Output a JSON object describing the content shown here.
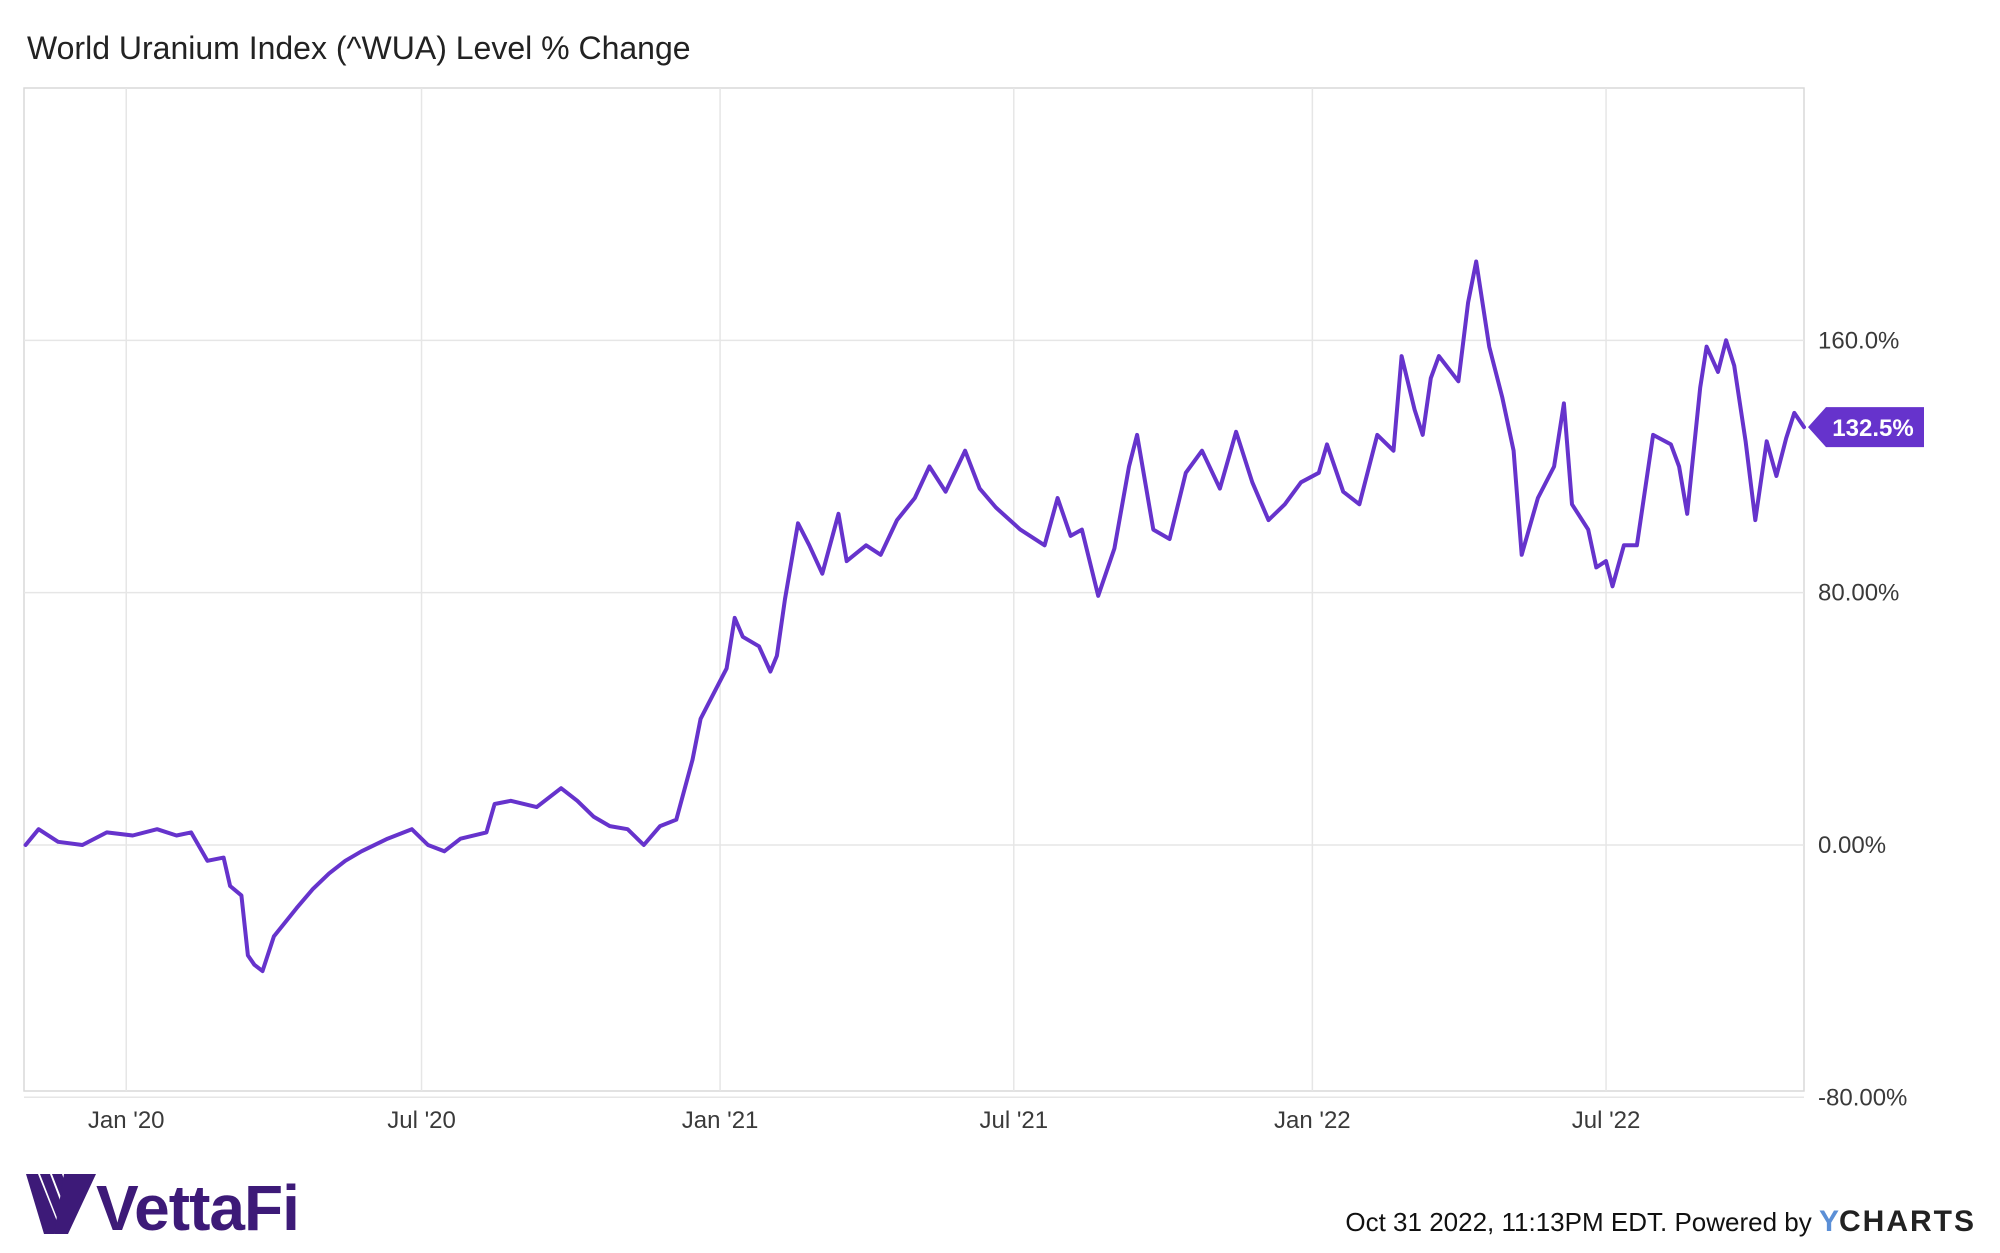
{
  "title": "World Uranium Index (^WUA) Level % Change",
  "footer": {
    "brand": "VettaFi",
    "timestamp": "Oct 31 2022, 11:13PM EDT.",
    "powered_by": "Powered by",
    "ycharts_y": "Y",
    "ycharts_rest": "CHARTS"
  },
  "colors": {
    "line": "#6633cc",
    "grid": "#e6e6e6",
    "brand": "#3d1a78",
    "ycharts_y": "#5b8fd6"
  },
  "chart_data": {
    "type": "line",
    "title": "World Uranium Index (^WUA) Level % Change",
    "xlabel": "",
    "ylabel": "",
    "y_ticks": [
      "160.0%",
      "80.00%",
      "0.00%",
      "-80.00%"
    ],
    "y_tick_values": [
      160,
      80,
      0,
      -80
    ],
    "x_ticks": [
      "Jan '20",
      "Jul '20",
      "Jan '21",
      "Jul '21",
      "Jan '22",
      "Jul '22"
    ],
    "x_tick_dates": [
      "2020-01-01",
      "2020-07-01",
      "2021-01-01",
      "2021-07-01",
      "2022-01-01",
      "2022-07-01"
    ],
    "xlim": [
      "2019-10-30",
      "2022-10-31"
    ],
    "ylim": [
      -78,
      240
    ],
    "grid": true,
    "last_value_label": "132.5%",
    "series": [
      {
        "values": [
          [
            "2019-10-31",
            0.0
          ],
          [
            "2019-11-08",
            5.0
          ],
          [
            "2019-11-20",
            1.0
          ],
          [
            "2019-12-05",
            0.0
          ],
          [
            "2019-12-20",
            4.0
          ],
          [
            "2020-01-05",
            3.0
          ],
          [
            "2020-01-20",
            5.0
          ],
          [
            "2020-02-01",
            3.0
          ],
          [
            "2020-02-10",
            4.0
          ],
          [
            "2020-02-20",
            -5.0
          ],
          [
            "2020-03-01",
            -4.0
          ],
          [
            "2020-03-05",
            -13.0
          ],
          [
            "2020-03-12",
            -16.0
          ],
          [
            "2020-03-16",
            -35.0
          ],
          [
            "2020-03-20",
            -38.0
          ],
          [
            "2020-03-25",
            -40.0
          ],
          [
            "2020-04-01",
            -29.0
          ],
          [
            "2020-04-15",
            -20.0
          ],
          [
            "2020-04-25",
            -14.0
          ],
          [
            "2020-05-05",
            -9.0
          ],
          [
            "2020-05-15",
            -5.0
          ],
          [
            "2020-05-25",
            -2.0
          ],
          [
            "2020-06-10",
            2.0
          ],
          [
            "2020-06-25",
            5.0
          ],
          [
            "2020-07-05",
            0.0
          ],
          [
            "2020-07-15",
            -2.0
          ],
          [
            "2020-07-25",
            2.0
          ],
          [
            "2020-08-10",
            4.0
          ],
          [
            "2020-08-15",
            13.0
          ],
          [
            "2020-08-25",
            14.0
          ],
          [
            "2020-09-10",
            12.0
          ],
          [
            "2020-09-25",
            18.0
          ],
          [
            "2020-10-05",
            14.0
          ],
          [
            "2020-10-15",
            9.0
          ],
          [
            "2020-10-25",
            6.0
          ],
          [
            "2020-11-05",
            5.0
          ],
          [
            "2020-11-15",
            0.0
          ],
          [
            "2020-11-25",
            6.0
          ],
          [
            "2020-12-05",
            8.0
          ],
          [
            "2020-12-15",
            27.0
          ],
          [
            "2020-12-20",
            40.0
          ],
          [
            "2020-12-28",
            48.0
          ],
          [
            "2021-01-05",
            56.0
          ],
          [
            "2021-01-10",
            72.0
          ],
          [
            "2021-01-15",
            66.0
          ],
          [
            "2021-01-25",
            63.0
          ],
          [
            "2021-02-01",
            55.0
          ],
          [
            "2021-02-05",
            60.0
          ],
          [
            "2021-02-10",
            78.0
          ],
          [
            "2021-02-18",
            102.0
          ],
          [
            "2021-02-25",
            95.0
          ],
          [
            "2021-03-05",
            86.0
          ],
          [
            "2021-03-15",
            105.0
          ],
          [
            "2021-03-20",
            90.0
          ],
          [
            "2021-04-01",
            95.0
          ],
          [
            "2021-04-10",
            92.0
          ],
          [
            "2021-04-20",
            103.0
          ],
          [
            "2021-05-01",
            110.0
          ],
          [
            "2021-05-10",
            120.0
          ],
          [
            "2021-05-20",
            112.0
          ],
          [
            "2021-06-01",
            125.0
          ],
          [
            "2021-06-10",
            113.0
          ],
          [
            "2021-06-20",
            107.0
          ],
          [
            "2021-07-05",
            100.0
          ],
          [
            "2021-07-20",
            95.0
          ],
          [
            "2021-07-28",
            110.0
          ],
          [
            "2021-08-05",
            98.0
          ],
          [
            "2021-08-12",
            100.0
          ],
          [
            "2021-08-22",
            79.0
          ],
          [
            "2021-09-01",
            94.0
          ],
          [
            "2021-09-10",
            120.0
          ],
          [
            "2021-09-15",
            130.0
          ],
          [
            "2021-09-25",
            100.0
          ],
          [
            "2021-10-05",
            97.0
          ],
          [
            "2021-10-15",
            118.0
          ],
          [
            "2021-10-25",
            125.0
          ],
          [
            "2021-11-05",
            113.0
          ],
          [
            "2021-11-15",
            131.0
          ],
          [
            "2021-11-25",
            115.0
          ],
          [
            "2021-12-05",
            103.0
          ],
          [
            "2021-12-15",
            108.0
          ],
          [
            "2021-12-25",
            115.0
          ],
          [
            "2022-01-05",
            118.0
          ],
          [
            "2022-01-10",
            127.0
          ],
          [
            "2022-01-20",
            112.0
          ],
          [
            "2022-01-30",
            108.0
          ],
          [
            "2022-02-10",
            130.0
          ],
          [
            "2022-02-20",
            125.0
          ],
          [
            "2022-02-25",
            155.0
          ],
          [
            "2022-03-05",
            138.0
          ],
          [
            "2022-03-10",
            130.0
          ],
          [
            "2022-03-15",
            148.0
          ],
          [
            "2022-03-20",
            155.0
          ],
          [
            "2022-04-01",
            147.0
          ],
          [
            "2022-04-07",
            172.0
          ],
          [
            "2022-04-12",
            185.0
          ],
          [
            "2022-04-20",
            158.0
          ],
          [
            "2022-04-28",
            142.0
          ],
          [
            "2022-05-05",
            125.0
          ],
          [
            "2022-05-10",
            92.0
          ],
          [
            "2022-05-20",
            110.0
          ],
          [
            "2022-05-30",
            120.0
          ],
          [
            "2022-06-05",
            140.0
          ],
          [
            "2022-06-10",
            108.0
          ],
          [
            "2022-06-20",
            100.0
          ],
          [
            "2022-06-25",
            88.0
          ],
          [
            "2022-07-01",
            90.0
          ],
          [
            "2022-07-05",
            82.0
          ],
          [
            "2022-07-12",
            95.0
          ],
          [
            "2022-07-20",
            95.0
          ],
          [
            "2022-07-30",
            130.0
          ],
          [
            "2022-08-10",
            127.0
          ],
          [
            "2022-08-15",
            120.0
          ],
          [
            "2022-08-20",
            105.0
          ],
          [
            "2022-08-28",
            145.0
          ],
          [
            "2022-09-01",
            158.0
          ],
          [
            "2022-09-08",
            150.0
          ],
          [
            "2022-09-13",
            160.0
          ],
          [
            "2022-09-18",
            152.0
          ],
          [
            "2022-09-25",
            128.0
          ],
          [
            "2022-10-01",
            103.0
          ],
          [
            "2022-10-08",
            128.0
          ],
          [
            "2022-10-14",
            117.0
          ],
          [
            "2022-10-20",
            129.0
          ],
          [
            "2022-10-25",
            137.0
          ],
          [
            "2022-10-31",
            132.5
          ]
        ]
      }
    ]
  }
}
